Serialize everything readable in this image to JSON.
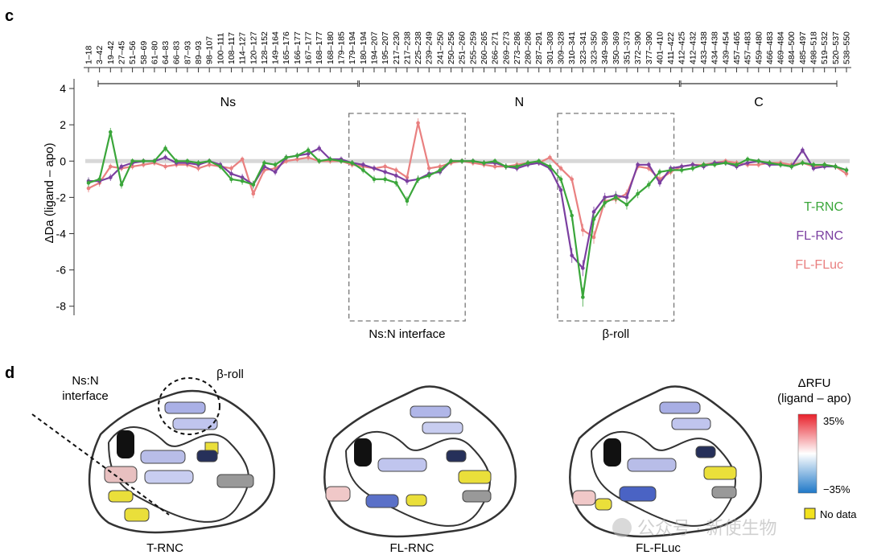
{
  "panel_c": {
    "label": "c",
    "chart_data": {
      "type": "line",
      "ylabel": "ΔDa (ligand – apo)",
      "ylim": [
        -8.5,
        4.8
      ],
      "yticks": [
        4,
        2,
        0,
        -2,
        -4,
        -6,
        -8
      ],
      "peptides": [
        "1–18",
        "3–42",
        "19–42",
        "27–45",
        "51–56",
        "58–69",
        "61–80",
        "64–83",
        "66–83",
        "87–93",
        "89–93",
        "98–107",
        "100–111",
        "108–117",
        "114–127",
        "120–127",
        "128–152",
        "149–164",
        "165–176",
        "166–177",
        "167–177",
        "168–177",
        "168–180",
        "179–185",
        "179–194",
        "180–194",
        "194–207",
        "195–207",
        "217–230",
        "217–238",
        "225–238",
        "239–249",
        "241–250",
        "250–256",
        "251–260",
        "255–259",
        "260–265",
        "266–271",
        "269–273",
        "273–286",
        "280–286",
        "287–291",
        "301–308",
        "309–328",
        "310–341",
        "323–341",
        "323–350",
        "349–369",
        "350–369",
        "351–373",
        "372–390",
        "377–390",
        "401–410",
        "411–422",
        "412–425",
        "412–432",
        "433–438",
        "434–438",
        "439–454",
        "457–465",
        "457–483",
        "459–480",
        "466–483",
        "469–484",
        "484–500",
        "485–497",
        "498–518",
        "519–532",
        "520–537",
        "538–550"
      ],
      "domains": [
        {
          "name": "Ns",
          "start": 1,
          "end": 194
        },
        {
          "name": "N",
          "start": 195,
          "end": 433
        },
        {
          "name": "C",
          "start": 434,
          "end": 550
        }
      ],
      "regions": [
        {
          "name": "Ns:N interface",
          "start_index": 24,
          "end_index": 34
        },
        {
          "name": "β-roll",
          "start_index": 43,
          "end_index": 53
        }
      ],
      "series": [
        {
          "name": "T-RNC",
          "color": "#3aa63a",
          "values": [
            -1.2,
            -1.0,
            1.6,
            -1.3,
            0.0,
            0.0,
            0.0,
            0.7,
            0.0,
            0.0,
            -0.1,
            0.0,
            -0.3,
            -1.0,
            -1.1,
            -1.3,
            -0.1,
            -0.2,
            0.2,
            0.3,
            0.6,
            0.0,
            0.1,
            0.0,
            -0.1,
            -0.5,
            -1.0,
            -1.0,
            -1.2,
            -2.2,
            -1.0,
            -0.8,
            -0.5,
            0.0,
            0.0,
            0.0,
            -0.1,
            0.0,
            -0.3,
            -0.3,
            -0.1,
            0.0,
            -0.3,
            -1.0,
            -3.0,
            -7.5,
            -3.2,
            -2.3,
            -2.0,
            -2.4,
            -1.8,
            -1.3,
            -0.6,
            -0.5,
            -0.5,
            -0.4,
            -0.2,
            -0.2,
            -0.1,
            -0.2,
            0.1,
            0.0,
            -0.1,
            -0.2,
            -0.3,
            -0.1,
            -0.2,
            -0.2,
            -0.3,
            -0.5
          ]
        },
        {
          "name": "FL-RNC",
          "color": "#7b3fa0",
          "values": [
            -1.1,
            -1.1,
            -0.9,
            -0.3,
            -0.1,
            0.0,
            0.0,
            0.2,
            -0.1,
            -0.1,
            -0.2,
            0.0,
            -0.2,
            -0.7,
            -0.9,
            -1.3,
            -0.3,
            -0.6,
            0.2,
            0.3,
            0.4,
            0.7,
            0.1,
            0.1,
            -0.1,
            -0.2,
            -0.4,
            -0.6,
            -0.8,
            -1.1,
            -1.0,
            -0.7,
            -0.6,
            0.0,
            0.0,
            0.0,
            -0.1,
            -0.1,
            -0.3,
            -0.4,
            -0.2,
            -0.1,
            -0.4,
            -1.6,
            -5.2,
            -5.9,
            -2.8,
            -2.0,
            -1.9,
            -2.0,
            -0.2,
            -0.2,
            -1.2,
            -0.4,
            -0.3,
            -0.2,
            -0.3,
            -0.1,
            -0.1,
            -0.3,
            -0.1,
            0.0,
            -0.2,
            -0.2,
            -0.3,
            0.6,
            -0.4,
            -0.3,
            -0.3,
            -0.5
          ]
        },
        {
          "name": "FL-FLuc",
          "color": "#e98080",
          "values": [
            -1.5,
            -1.2,
            -0.3,
            -0.4,
            -0.3,
            -0.2,
            -0.1,
            -0.3,
            -0.2,
            -0.2,
            -0.4,
            -0.2,
            -0.3,
            -0.4,
            0.1,
            -1.8,
            -0.5,
            -0.4,
            0.0,
            0.1,
            0.2,
            0.0,
            0.0,
            0.0,
            -0.2,
            -0.3,
            -0.4,
            -0.3,
            -0.5,
            -0.9,
            2.1,
            -0.4,
            -0.3,
            -0.1,
            0.0,
            -0.1,
            -0.2,
            -0.3,
            -0.3,
            -0.2,
            -0.1,
            -0.1,
            0.2,
            -0.4,
            -1.0,
            -3.8,
            -4.2,
            -2.2,
            -2.1,
            -1.8,
            -0.3,
            -0.4,
            -1.0,
            -0.6,
            -0.3,
            -0.2,
            -0.2,
            -0.1,
            0.0,
            -0.1,
            -0.2,
            -0.2,
            -0.1,
            -0.1,
            -0.2,
            -0.1,
            -0.3,
            -0.2,
            -0.3,
            -0.7
          ]
        }
      ]
    }
  },
  "panel_d": {
    "label": "d",
    "structures": [
      {
        "name": "T-RNC"
      },
      {
        "name": "FL-RNC"
      },
      {
        "name": "FL-FLuc"
      }
    ],
    "annotations": {
      "interface": [
        "Ns:N",
        "interface"
      ],
      "beta_roll": "β-roll"
    },
    "colorbar": {
      "title_lines": [
        "ΔRFU",
        "(ligand – apo)"
      ],
      "max_label": "35%",
      "min_label": "−35%",
      "colors": {
        "high": "#e8202a",
        "mid": "#ffffff",
        "low": "#1f78c8"
      },
      "no_data_label": "No data",
      "no_data_color": "#f2e21e"
    }
  },
  "watermark": "公众号 · 新使生物"
}
